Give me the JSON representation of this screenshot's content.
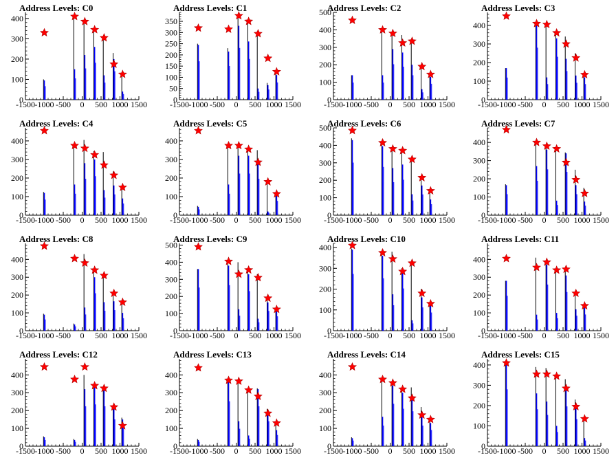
{
  "figure": {
    "columns": 4,
    "rows": 4,
    "star_color": "#ff0000",
    "bar_color": "#0000ff",
    "outline_color": "#000000"
  },
  "chart_data": [
    {
      "type": "bar",
      "title": "Address Levels: C0",
      "xlim": [
        -1500,
        1500
      ],
      "ylim": [
        0,
        430
      ],
      "yticks": [
        0,
        100,
        200,
        300,
        400
      ],
      "xticks": [
        -1500,
        -1000,
        -500,
        0,
        500,
        1000,
        1500
      ],
      "peaks": [
        {
          "x": -1000,
          "y": 330,
          "outline": 100,
          "fill": 95
        },
        {
          "x": -200,
          "y": 410,
          "outline": 410,
          "fill": 150
        },
        {
          "x": 70,
          "y": 385,
          "outline": 385,
          "fill": 220
        },
        {
          "x": 330,
          "y": 345,
          "outline": 345,
          "fill": 260
        },
        {
          "x": 580,
          "y": 305,
          "outline": 305,
          "fill": 120
        },
        {
          "x": 840,
          "y": 175,
          "outline": 230,
          "fill": 200
        },
        {
          "x": 1070,
          "y": 125,
          "outline": 125,
          "fill": 40
        }
      ]
    },
    {
      "type": "bar",
      "title": "Address Levels: C1",
      "xlim": [
        -1500,
        1500
      ],
      "ylim": [
        0,
        390
      ],
      "yticks": [
        0,
        50,
        100,
        150,
        200,
        250,
        300,
        350
      ],
      "xticks": [
        -1500,
        -1000,
        -500,
        0,
        500,
        1000,
        1500
      ],
      "peaks": [
        {
          "x": -1000,
          "y": 320,
          "outline": 250,
          "fill": 245
        },
        {
          "x": -200,
          "y": 315,
          "outline": 230,
          "fill": 215
        },
        {
          "x": 70,
          "y": 375,
          "outline": 375,
          "fill": 330
        },
        {
          "x": 330,
          "y": 350,
          "outline": 350,
          "fill": 260
        },
        {
          "x": 580,
          "y": 295,
          "outline": 305,
          "fill": 50
        },
        {
          "x": 840,
          "y": 185,
          "outline": 75,
          "fill": 65
        },
        {
          "x": 1070,
          "y": 125,
          "outline": 125,
          "fill": 110
        }
      ]
    },
    {
      "type": "bar",
      "title": "Address Levels: C2",
      "xlim": [
        -1500,
        1500
      ],
      "ylim": [
        0,
        500
      ],
      "yticks": [
        0,
        100,
        200,
        300,
        400,
        500
      ],
      "xticks": [
        -1500,
        -1000,
        -500,
        0,
        500,
        1000,
        1500
      ],
      "peaks": [
        {
          "x": -1000,
          "y": 455,
          "outline": 140,
          "fill": 140
        },
        {
          "x": -200,
          "y": 400,
          "outline": 390,
          "fill": 140
        },
        {
          "x": 70,
          "y": 380,
          "outline": 380,
          "fill": 290
        },
        {
          "x": 330,
          "y": 325,
          "outline": 370,
          "fill": 270
        },
        {
          "x": 580,
          "y": 335,
          "outline": 340,
          "fill": 200
        },
        {
          "x": 840,
          "y": 190,
          "outline": 190,
          "fill": 60
        },
        {
          "x": 1070,
          "y": 145,
          "outline": 145,
          "fill": 130
        }
      ]
    },
    {
      "type": "bar",
      "title": "Address Levels: C3",
      "xlim": [
        -1500,
        1500
      ],
      "ylim": [
        0,
        470
      ],
      "yticks": [
        0,
        100,
        200,
        300,
        400
      ],
      "xticks": [
        -1500,
        -1000,
        -500,
        0,
        500,
        1000,
        1500
      ],
      "peaks": [
        {
          "x": -1000,
          "y": 450,
          "outline": 170,
          "fill": 170
        },
        {
          "x": -200,
          "y": 410,
          "outline": 410,
          "fill": 400
        },
        {
          "x": 70,
          "y": 405,
          "outline": 405,
          "fill": 120
        },
        {
          "x": 330,
          "y": 360,
          "outline": 360,
          "fill": 330
        },
        {
          "x": 580,
          "y": 300,
          "outline": 340,
          "fill": 220
        },
        {
          "x": 840,
          "y": 225,
          "outline": 250,
          "fill": 130
        },
        {
          "x": 1070,
          "y": 135,
          "outline": 135,
          "fill": 120
        }
      ]
    },
    {
      "type": "bar",
      "title": "Address Levels: C4",
      "xlim": [
        -1500,
        1500
      ],
      "ylim": [
        0,
        470
      ],
      "yticks": [
        0,
        100,
        200,
        300,
        400
      ],
      "xticks": [
        -1500,
        -1000,
        -500,
        0,
        500,
        1000,
        1500
      ],
      "peaks": [
        {
          "x": -1000,
          "y": 455,
          "outline": 125,
          "fill": 120
        },
        {
          "x": -200,
          "y": 375,
          "outline": 380,
          "fill": 165
        },
        {
          "x": 70,
          "y": 360,
          "outline": 405,
          "fill": 280
        },
        {
          "x": 330,
          "y": 325,
          "outline": 345,
          "fill": 300
        },
        {
          "x": 580,
          "y": 270,
          "outline": 340,
          "fill": 135
        },
        {
          "x": 840,
          "y": 215,
          "outline": 235,
          "fill": 160
        },
        {
          "x": 1070,
          "y": 150,
          "outline": 150,
          "fill": 90
        }
      ]
    },
    {
      "type": "bar",
      "title": "Address Levels: C5",
      "xlim": [
        -1500,
        1500
      ],
      "ylim": [
        0,
        470
      ],
      "yticks": [
        0,
        100,
        200,
        300,
        400
      ],
      "xticks": [
        -1500,
        -1000,
        -500,
        0,
        500,
        1000,
        1500
      ],
      "peaks": [
        {
          "x": -1000,
          "y": 455,
          "outline": 50,
          "fill": 45
        },
        {
          "x": -200,
          "y": 375,
          "outline": 375,
          "fill": 165
        },
        {
          "x": 70,
          "y": 375,
          "outline": 375,
          "fill": 320
        },
        {
          "x": 330,
          "y": 355,
          "outline": 355,
          "fill": 320
        },
        {
          "x": 580,
          "y": 285,
          "outline": 350,
          "fill": 280
        },
        {
          "x": 840,
          "y": 180,
          "outline": 180,
          "fill": 20
        },
        {
          "x": 1070,
          "y": 115,
          "outline": 115,
          "fill": 110
        }
      ]
    },
    {
      "type": "bar",
      "title": "Address Levels: C6",
      "xlim": [
        -1500,
        1500
      ],
      "ylim": [
        0,
        500
      ],
      "yticks": [
        0,
        100,
        200,
        300,
        400,
        500
      ],
      "xticks": [
        -1500,
        -1000,
        -500,
        0,
        500,
        1000,
        1500
      ],
      "peaks": [
        {
          "x": -1000,
          "y": 485,
          "outline": 440,
          "fill": 430
        },
        {
          "x": -200,
          "y": 415,
          "outline": 405,
          "fill": 395
        },
        {
          "x": 70,
          "y": 380,
          "outline": 385,
          "fill": 270
        },
        {
          "x": 330,
          "y": 370,
          "outline": 370,
          "fill": 290
        },
        {
          "x": 580,
          "y": 320,
          "outline": 320,
          "fill": 120
        },
        {
          "x": 840,
          "y": 215,
          "outline": 200,
          "fill": 170
        },
        {
          "x": 1070,
          "y": 140,
          "outline": 140,
          "fill": 90
        }
      ]
    },
    {
      "type": "bar",
      "title": "Address Levels: C7",
      "xlim": [
        -1500,
        1500
      ],
      "ylim": [
        0,
        480
      ],
      "yticks": [
        0,
        100,
        200,
        300,
        400
      ],
      "xticks": [
        -1500,
        -1000,
        -500,
        0,
        500,
        1000,
        1500
      ],
      "peaks": [
        {
          "x": -1000,
          "y": 470,
          "outline": 170,
          "fill": 165
        },
        {
          "x": -200,
          "y": 400,
          "outline": 395,
          "fill": 270
        },
        {
          "x": 70,
          "y": 380,
          "outline": 380,
          "fill": 360
        },
        {
          "x": 330,
          "y": 365,
          "outline": 375,
          "fill": 80
        },
        {
          "x": 580,
          "y": 290,
          "outline": 345,
          "fill": 340
        },
        {
          "x": 840,
          "y": 195,
          "outline": 250,
          "fill": 165
        },
        {
          "x": 1070,
          "y": 120,
          "outline": 150,
          "fill": 75
        }
      ]
    },
    {
      "type": "bar",
      "title": "Address Levels: C8",
      "xlim": [
        -1500,
        1500
      ],
      "ylim": [
        0,
        490
      ],
      "yticks": [
        0,
        100,
        200,
        300,
        400
      ],
      "xticks": [
        -1500,
        -1000,
        -500,
        0,
        500,
        1000,
        1500
      ],
      "peaks": [
        {
          "x": -1000,
          "y": 475,
          "outline": 95,
          "fill": 90
        },
        {
          "x": -200,
          "y": 405,
          "outline": 40,
          "fill": 35
        },
        {
          "x": 70,
          "y": 380,
          "outline": 430,
          "fill": 130
        },
        {
          "x": 330,
          "y": 340,
          "outline": 335,
          "fill": 300
        },
        {
          "x": 580,
          "y": 310,
          "outline": 320,
          "fill": 160
        },
        {
          "x": 840,
          "y": 210,
          "outline": 215,
          "fill": 165
        },
        {
          "x": 1070,
          "y": 160,
          "outline": 160,
          "fill": 100
        }
      ]
    },
    {
      "type": "bar",
      "title": "Address Levels: C9",
      "xlim": [
        -1500,
        1500
      ],
      "ylim": [
        0,
        510
      ],
      "yticks": [
        0,
        100,
        200,
        300,
        400,
        500
      ],
      "xticks": [
        -1500,
        -1000,
        -500,
        0,
        500,
        1000,
        1500
      ],
      "peaks": [
        {
          "x": -1000,
          "y": 490,
          "outline": 360,
          "fill": 360
        },
        {
          "x": -200,
          "y": 405,
          "outline": 390,
          "fill": 380
        },
        {
          "x": 70,
          "y": 330,
          "outline": 400,
          "fill": 125
        },
        {
          "x": 330,
          "y": 355,
          "outline": 360,
          "fill": 330
        },
        {
          "x": 580,
          "y": 310,
          "outline": 330,
          "fill": 70
        },
        {
          "x": 840,
          "y": 190,
          "outline": 200,
          "fill": 165
        },
        {
          "x": 1070,
          "y": 125,
          "outline": 125,
          "fill": 120
        }
      ]
    },
    {
      "type": "bar",
      "title": "Address Levels: C10",
      "xlim": [
        -1500,
        1500
      ],
      "ylim": [
        0,
        420
      ],
      "yticks": [
        0,
        100,
        200,
        300,
        400
      ],
      "xticks": [
        -1500,
        -1000,
        -500,
        0,
        500,
        1000,
        1500
      ],
      "peaks": [
        {
          "x": -1000,
          "y": 410,
          "outline": 395,
          "fill": 390
        },
        {
          "x": -200,
          "y": 375,
          "outline": 375,
          "fill": 360
        },
        {
          "x": 70,
          "y": 345,
          "outline": 380,
          "fill": 175
        },
        {
          "x": 330,
          "y": 285,
          "outline": 300,
          "fill": 290
        },
        {
          "x": 580,
          "y": 325,
          "outline": 330,
          "fill": 50
        },
        {
          "x": 840,
          "y": 180,
          "outline": 200,
          "fill": 160
        },
        {
          "x": 1070,
          "y": 130,
          "outline": 130,
          "fill": 125
        }
      ]
    },
    {
      "type": "bar",
      "title": "Address Levels: C11",
      "xlim": [
        -1500,
        1500
      ],
      "ylim": [
        0,
        490
      ],
      "yticks": [
        0,
        100,
        200,
        300,
        400
      ],
      "xticks": [
        -1500,
        -1000,
        -500,
        0,
        500,
        1000,
        1500
      ],
      "peaks": [
        {
          "x": -1000,
          "y": 405,
          "outline": 280,
          "fill": 280
        },
        {
          "x": -200,
          "y": 355,
          "outline": 410,
          "fill": 90
        },
        {
          "x": 70,
          "y": 385,
          "outline": 385,
          "fill": 370
        },
        {
          "x": 330,
          "y": 340,
          "outline": 340,
          "fill": 100
        },
        {
          "x": 580,
          "y": 345,
          "outline": 345,
          "fill": 310
        },
        {
          "x": 840,
          "y": 210,
          "outline": 210,
          "fill": 120
        },
        {
          "x": 1070,
          "y": 140,
          "outline": 140,
          "fill": 130
        }
      ]
    },
    {
      "type": "bar",
      "title": "Address Levels: C12",
      "xlim": [
        -1500,
        1500
      ],
      "ylim": [
        0,
        490
      ],
      "yticks": [
        0,
        100,
        200,
        300,
        400
      ],
      "xticks": [
        -1500,
        -1000,
        -500,
        0,
        500,
        1000,
        1500
      ],
      "peaks": [
        {
          "x": -1000,
          "y": 445,
          "outline": 55,
          "fill": 50
        },
        {
          "x": -200,
          "y": 375,
          "outline": 40,
          "fill": 35
        },
        {
          "x": 70,
          "y": 445,
          "outline": 400,
          "fill": 320
        },
        {
          "x": 330,
          "y": 340,
          "outline": 340,
          "fill": 335
        },
        {
          "x": 580,
          "y": 325,
          "outline": 330,
          "fill": 320
        },
        {
          "x": 840,
          "y": 220,
          "outline": 220,
          "fill": 215
        },
        {
          "x": 1070,
          "y": 115,
          "outline": 160,
          "fill": 150
        }
      ]
    },
    {
      "type": "bar",
      "title": "Address Levels: C13",
      "xlim": [
        -1500,
        1500
      ],
      "ylim": [
        0,
        490
      ],
      "yticks": [
        0,
        100,
        200,
        300,
        400
      ],
      "xticks": [
        -1500,
        -1000,
        -500,
        0,
        500,
        1000,
        1500
      ],
      "peaks": [
        {
          "x": -1000,
          "y": 440,
          "outline": 40,
          "fill": 35
        },
        {
          "x": -200,
          "y": 370,
          "outline": 365,
          "fill": 360
        },
        {
          "x": 70,
          "y": 365,
          "outline": 370,
          "fill": 140
        },
        {
          "x": 330,
          "y": 315,
          "outline": 320,
          "fill": 60
        },
        {
          "x": 580,
          "y": 280,
          "outline": 325,
          "fill": 320
        },
        {
          "x": 840,
          "y": 185,
          "outline": 210,
          "fill": 200
        },
        {
          "x": 1070,
          "y": 130,
          "outline": 130,
          "fill": 90
        }
      ]
    },
    {
      "type": "bar",
      "title": "Address Levels: C14",
      "xlim": [
        -1500,
        1500
      ],
      "ylim": [
        0,
        490
      ],
      "yticks": [
        0,
        100,
        200,
        300,
        400
      ],
      "xticks": [
        -1500,
        -1000,
        -500,
        0,
        500,
        1000,
        1500
      ],
      "peaks": [
        {
          "x": -1000,
          "y": 445,
          "outline": 50,
          "fill": 45
        },
        {
          "x": -200,
          "y": 375,
          "outline": 365,
          "fill": 165
        },
        {
          "x": 70,
          "y": 355,
          "outline": 360,
          "fill": 340
        },
        {
          "x": 330,
          "y": 320,
          "outline": 330,
          "fill": 300
        },
        {
          "x": 580,
          "y": 270,
          "outline": 330,
          "fill": 280
        },
        {
          "x": 840,
          "y": 175,
          "outline": 220,
          "fill": 165
        },
        {
          "x": 1070,
          "y": 150,
          "outline": 150,
          "fill": 130
        }
      ]
    },
    {
      "type": "bar",
      "title": "Address Levels: C15",
      "xlim": [
        -1500,
        1500
      ],
      "ylim": [
        0,
        430
      ],
      "yticks": [
        0,
        100,
        200,
        300,
        400
      ],
      "xticks": [
        -1500,
        -1000,
        -500,
        0,
        500,
        1000,
        1500
      ],
      "peaks": [
        {
          "x": -1000,
          "y": 410,
          "outline": 410,
          "fill": 400
        },
        {
          "x": -200,
          "y": 355,
          "outline": 390,
          "fill": 260
        },
        {
          "x": 70,
          "y": 355,
          "outline": 385,
          "fill": 220
        },
        {
          "x": 330,
          "y": 345,
          "outline": 350,
          "fill": 100
        },
        {
          "x": 580,
          "y": 285,
          "outline": 330,
          "fill": 280
        },
        {
          "x": 840,
          "y": 195,
          "outline": 230,
          "fill": 190
        },
        {
          "x": 1070,
          "y": 135,
          "outline": 140,
          "fill": 40
        }
      ]
    }
  ]
}
